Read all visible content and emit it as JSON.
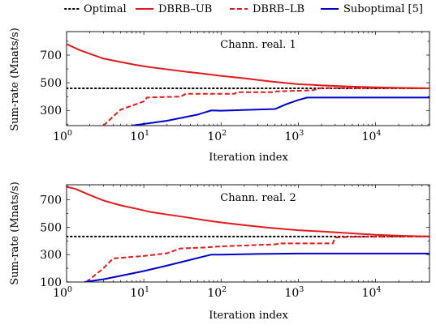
{
  "legend": {
    "items": [
      {
        "key": "optimal",
        "label": "Optimal",
        "color": "#000000",
        "dash": "dotted"
      },
      {
        "key": "dbrb_ub",
        "label": "DBRB–UB",
        "color": "#e31a1c",
        "dash": "solid"
      },
      {
        "key": "dbrb_lb",
        "label": "DBRB–LB",
        "color": "#e31a1c",
        "dash": "dashed"
      },
      {
        "key": "subopt",
        "label": "Suboptimal [5]",
        "color": "#0000cc",
        "dash": "solid"
      }
    ],
    "placement": "top-center"
  },
  "chart_data": [
    {
      "type": "line",
      "annotation": "Chann. real. 1",
      "xlabel": "Iteration index",
      "ylabel": "Sum-rate (Mnats/s)",
      "xscale": "log",
      "xlim": [
        1,
        50000
      ],
      "ylim": [
        190,
        870
      ],
      "yticks": [
        300,
        500,
        700
      ],
      "xticks": [
        {
          "base": "10",
          "exp": "0"
        },
        {
          "base": "10",
          "exp": "1"
        },
        {
          "base": "10",
          "exp": "2"
        },
        {
          "base": "10",
          "exp": "3"
        },
        {
          "base": "10",
          "exp": "4"
        }
      ],
      "grid": false,
      "series": [
        {
          "key": "optimal",
          "x": [
            1,
            50000
          ],
          "y": [
            460,
            460
          ]
        },
        {
          "key": "dbrb_ub",
          "x": [
            1,
            1.5,
            3,
            5,
            8,
            12,
            20,
            35,
            60,
            100,
            200,
            400,
            700,
            1000,
            2000,
            5000,
            10000,
            20000,
            50000
          ],
          "y": [
            780,
            735,
            675,
            650,
            628,
            613,
            597,
            580,
            565,
            550,
            532,
            512,
            498,
            490,
            481,
            472,
            467,
            463,
            460
          ]
        },
        {
          "key": "dbrb_lb",
          "x": [
            3,
            5,
            10,
            11,
            30,
            35,
            150,
            160,
            500,
            520,
            1500,
            2000,
            50000
          ],
          "y": [
            190,
            305,
            365,
            393,
            400,
            420,
            420,
            432,
            432,
            438,
            445,
            462,
            460
          ]
        },
        {
          "key": "subopt",
          "x": [
            7,
            20,
            50,
            75,
            100,
            500,
            700,
            1000,
            1300,
            50000
          ],
          "y": [
            190,
            225,
            270,
            300,
            298,
            310,
            345,
            375,
            393,
            393
          ]
        }
      ]
    },
    {
      "type": "line",
      "annotation": "Chann. real. 2",
      "xlabel": "Iteration index",
      "ylabel": "Sum-rate (Mnats/s)",
      "xscale": "log",
      "xlim": [
        1,
        50000
      ],
      "ylim": [
        100,
        810
      ],
      "yticks": [
        100,
        300,
        500,
        700
      ],
      "xticks": [
        {
          "base": "10",
          "exp": "0"
        },
        {
          "base": "10",
          "exp": "1"
        },
        {
          "base": "10",
          "exp": "2"
        },
        {
          "base": "10",
          "exp": "3"
        },
        {
          "base": "10",
          "exp": "4"
        }
      ],
      "grid": false,
      "series": [
        {
          "key": "optimal",
          "x": [
            1,
            50000
          ],
          "y": [
            432,
            432
          ]
        },
        {
          "key": "dbrb_ub",
          "x": [
            1,
            1.3,
            2,
            3,
            5,
            8,
            12,
            20,
            35,
            60,
            100,
            200,
            400,
            700,
            1000,
            2000,
            5000,
            10000,
            20000,
            50000
          ],
          "y": [
            795,
            780,
            735,
            695,
            660,
            635,
            612,
            593,
            573,
            552,
            535,
            515,
            497,
            485,
            478,
            469,
            455,
            445,
            438,
            432
          ]
        },
        {
          "key": "dbrb_lb",
          "x": [
            1.8,
            3,
            4,
            6,
            10,
            20,
            30,
            60,
            100,
            500,
            600,
            2800,
            3000,
            5000,
            50000
          ],
          "y": [
            100,
            200,
            272,
            280,
            290,
            310,
            345,
            352,
            360,
            375,
            382,
            382,
            425,
            430,
            432
          ]
        },
        {
          "key": "subopt",
          "x": [
            1.7,
            3,
            5,
            10,
            20,
            40,
            75,
            100,
            300,
            1000,
            50000
          ],
          "y": [
            100,
            120,
            145,
            180,
            220,
            262,
            300,
            300,
            305,
            308,
            308
          ]
        }
      ]
    }
  ]
}
